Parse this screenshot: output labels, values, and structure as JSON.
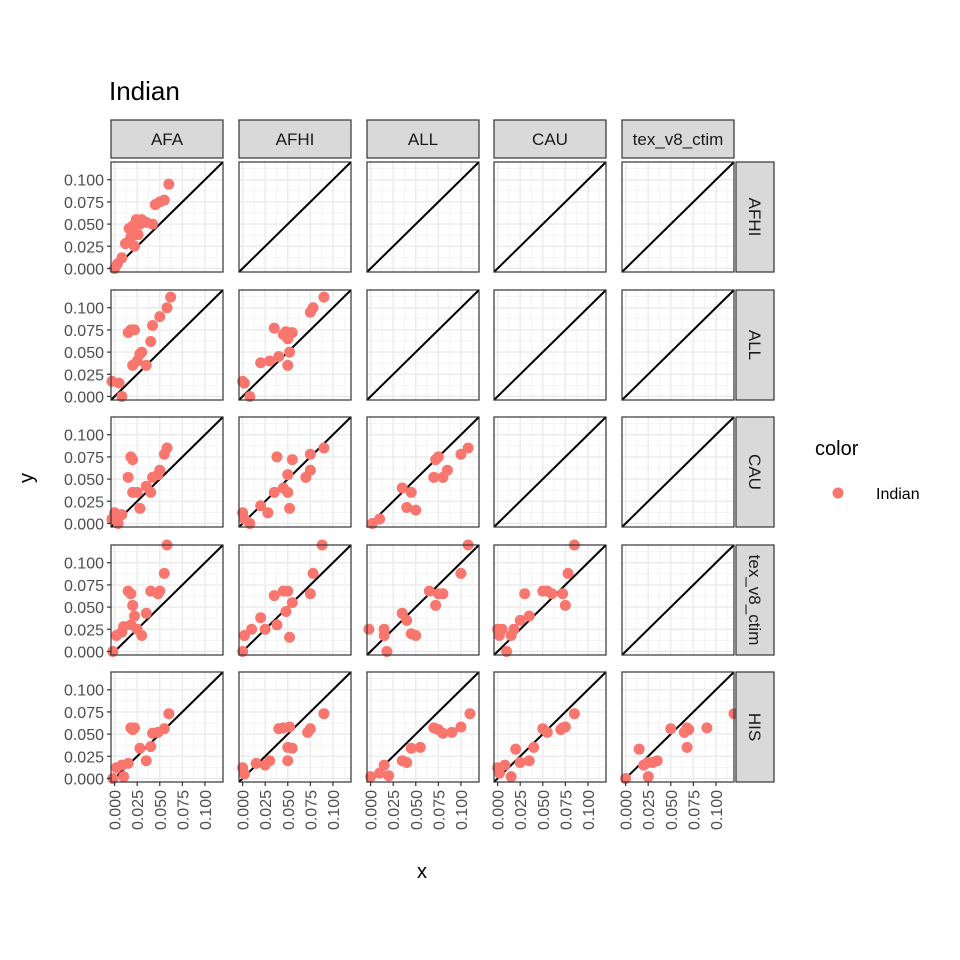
{
  "chart_data": {
    "type": "scatter",
    "title": "Indian",
    "xlabel": "x",
    "ylabel": "y",
    "xlim": [
      -0.004,
      0.12
    ],
    "ylim": [
      -0.004,
      0.12
    ],
    "ticks": [
      0.0,
      0.025,
      0.05,
      0.075,
      0.1
    ],
    "tick_labels": [
      "0.000",
      "0.025",
      "0.050",
      "0.075",
      "0.100"
    ],
    "grid": true,
    "reference_line": "y = x",
    "col_facets": [
      "AFA",
      "AFHI",
      "ALL",
      "CAU",
      "tex_v8_ctim"
    ],
    "row_facets": [
      "AFHI",
      "ALL",
      "CAU",
      "tex_v8_ctim",
      "HIS"
    ],
    "legend": {
      "title": "color",
      "position": "right",
      "entries": [
        {
          "label": "Indian",
          "color": "#F8766D"
        }
      ]
    },
    "panels": [
      {
        "row": 0,
        "col": 0,
        "points": [
          [
            0.0,
            0.0
          ],
          [
            0.003,
            0.005
          ],
          [
            0.008,
            0.012
          ],
          [
            0.012,
            0.028
          ],
          [
            0.015,
            0.03
          ],
          [
            0.016,
            0.045
          ],
          [
            0.018,
            0.035
          ],
          [
            0.02,
            0.048
          ],
          [
            0.022,
            0.025
          ],
          [
            0.024,
            0.055
          ],
          [
            0.026,
            0.038
          ],
          [
            0.028,
            0.05
          ],
          [
            0.03,
            0.055
          ],
          [
            0.035,
            0.052
          ],
          [
            0.042,
            0.05
          ],
          [
            0.045,
            0.072
          ],
          [
            0.05,
            0.075
          ],
          [
            0.055,
            0.077
          ],
          [
            0.06,
            0.095
          ]
        ]
      },
      {
        "row": 1,
        "col": 0,
        "points": [
          [
            -0.003,
            0.017
          ],
          [
            0.005,
            0.015
          ],
          [
            0.008,
            0.0
          ],
          [
            0.015,
            0.072
          ],
          [
            0.018,
            0.075
          ],
          [
            0.02,
            0.035
          ],
          [
            0.022,
            0.075
          ],
          [
            0.025,
            0.04
          ],
          [
            0.028,
            0.048
          ],
          [
            0.03,
            0.05
          ],
          [
            0.035,
            0.035
          ],
          [
            0.04,
            0.062
          ],
          [
            0.042,
            0.08
          ],
          [
            0.05,
            0.09
          ],
          [
            0.058,
            0.1
          ],
          [
            0.062,
            0.112
          ]
        ]
      },
      {
        "row": 1,
        "col": 1,
        "points": [
          [
            0.0,
            0.017
          ],
          [
            0.002,
            0.015
          ],
          [
            0.008,
            0.0
          ],
          [
            0.02,
            0.038
          ],
          [
            0.03,
            0.04
          ],
          [
            0.035,
            0.077
          ],
          [
            0.04,
            0.045
          ],
          [
            0.045,
            0.07
          ],
          [
            0.048,
            0.073
          ],
          [
            0.05,
            0.035
          ],
          [
            0.05,
            0.065
          ],
          [
            0.052,
            0.05
          ],
          [
            0.055,
            0.072
          ],
          [
            0.075,
            0.095
          ],
          [
            0.078,
            0.1
          ],
          [
            0.09,
            0.112
          ]
        ]
      },
      {
        "row": 2,
        "col": 0,
        "points": [
          [
            -0.003,
            0.005
          ],
          [
            0.0,
            0.012
          ],
          [
            0.004,
            0.0
          ],
          [
            0.008,
            0.01
          ],
          [
            0.015,
            0.052
          ],
          [
            0.018,
            0.075
          ],
          [
            0.02,
            0.072
          ],
          [
            0.02,
            0.035
          ],
          [
            0.025,
            0.035
          ],
          [
            0.028,
            0.017
          ],
          [
            0.035,
            0.042
          ],
          [
            0.04,
            0.035
          ],
          [
            0.042,
            0.052
          ],
          [
            0.048,
            0.055
          ],
          [
            0.05,
            0.06
          ],
          [
            0.055,
            0.078
          ],
          [
            0.058,
            0.085
          ]
        ]
      },
      {
        "row": 2,
        "col": 1,
        "points": [
          [
            0.0,
            0.012
          ],
          [
            0.002,
            0.005
          ],
          [
            0.008,
            0.0
          ],
          [
            0.02,
            0.02
          ],
          [
            0.028,
            0.012
          ],
          [
            0.035,
            0.035
          ],
          [
            0.038,
            0.075
          ],
          [
            0.045,
            0.04
          ],
          [
            0.05,
            0.035
          ],
          [
            0.05,
            0.055
          ],
          [
            0.052,
            0.017
          ],
          [
            0.055,
            0.072
          ],
          [
            0.07,
            0.052
          ],
          [
            0.075,
            0.06
          ],
          [
            0.075,
            0.078
          ],
          [
            0.09,
            0.085
          ]
        ]
      },
      {
        "row": 2,
        "col": 2,
        "points": [
          [
            0.002,
            0.0
          ],
          [
            0.01,
            0.005
          ],
          [
            0.035,
            0.04
          ],
          [
            0.04,
            0.018
          ],
          [
            0.045,
            0.035
          ],
          [
            0.05,
            0.015
          ],
          [
            0.07,
            0.052
          ],
          [
            0.072,
            0.072
          ],
          [
            0.075,
            0.075
          ],
          [
            0.08,
            0.052
          ],
          [
            0.085,
            0.06
          ],
          [
            0.1,
            0.078
          ],
          [
            0.108,
            0.085
          ]
        ]
      },
      {
        "row": 3,
        "col": 0,
        "points": [
          [
            -0.002,
            0.0
          ],
          [
            0.002,
            0.018
          ],
          [
            0.008,
            0.022
          ],
          [
            0.01,
            0.028
          ],
          [
            0.015,
            0.068
          ],
          [
            0.018,
            0.065
          ],
          [
            0.018,
            0.03
          ],
          [
            0.02,
            0.052
          ],
          [
            0.022,
            0.04
          ],
          [
            0.025,
            0.025
          ],
          [
            0.03,
            0.018
          ],
          [
            0.035,
            0.043
          ],
          [
            0.04,
            0.068
          ],
          [
            0.048,
            0.065
          ],
          [
            0.05,
            0.068
          ],
          [
            0.055,
            0.088
          ],
          [
            0.058,
            0.12
          ]
        ]
      },
      {
        "row": 3,
        "col": 1,
        "points": [
          [
            0.0,
            0.0
          ],
          [
            0.002,
            0.018
          ],
          [
            0.01,
            0.025
          ],
          [
            0.02,
            0.038
          ],
          [
            0.025,
            0.025
          ],
          [
            0.035,
            0.063
          ],
          [
            0.038,
            0.03
          ],
          [
            0.045,
            0.068
          ],
          [
            0.048,
            0.045
          ],
          [
            0.05,
            0.068
          ],
          [
            0.052,
            0.016
          ],
          [
            0.055,
            0.055
          ],
          [
            0.075,
            0.065
          ],
          [
            0.078,
            0.088
          ],
          [
            0.088,
            0.12
          ]
        ]
      },
      {
        "row": 3,
        "col": 2,
        "points": [
          [
            -0.002,
            0.025
          ],
          [
            0.015,
            0.025
          ],
          [
            0.015,
            0.018
          ],
          [
            0.018,
            0.0
          ],
          [
            0.035,
            0.043
          ],
          [
            0.04,
            0.035
          ],
          [
            0.045,
            0.02
          ],
          [
            0.05,
            0.018
          ],
          [
            0.065,
            0.068
          ],
          [
            0.072,
            0.052
          ],
          [
            0.075,
            0.065
          ],
          [
            0.08,
            0.065
          ],
          [
            0.1,
            0.088
          ],
          [
            0.108,
            0.12
          ]
        ]
      },
      {
        "row": 3,
        "col": 3,
        "points": [
          [
            0.0,
            0.025
          ],
          [
            0.002,
            0.018
          ],
          [
            0.005,
            0.025
          ],
          [
            0.01,
            0.0
          ],
          [
            0.015,
            0.018
          ],
          [
            0.018,
            0.025
          ],
          [
            0.025,
            0.035
          ],
          [
            0.03,
            0.065
          ],
          [
            0.035,
            0.04
          ],
          [
            0.05,
            0.068
          ],
          [
            0.055,
            0.068
          ],
          [
            0.06,
            0.065
          ],
          [
            0.072,
            0.065
          ],
          [
            0.075,
            0.052
          ],
          [
            0.078,
            0.088
          ],
          [
            0.085,
            0.12
          ]
        ]
      },
      {
        "row": 4,
        "col": 0,
        "points": [
          [
            -0.002,
            0.0
          ],
          [
            0.002,
            0.012
          ],
          [
            0.008,
            0.015
          ],
          [
            0.01,
            0.002
          ],
          [
            0.015,
            0.017
          ],
          [
            0.018,
            0.057
          ],
          [
            0.02,
            0.055
          ],
          [
            0.022,
            0.057
          ],
          [
            0.028,
            0.034
          ],
          [
            0.035,
            0.02
          ],
          [
            0.04,
            0.036
          ],
          [
            0.042,
            0.051
          ],
          [
            0.048,
            0.052
          ],
          [
            0.055,
            0.056
          ],
          [
            0.06,
            0.073
          ]
        ]
      },
      {
        "row": 4,
        "col": 1,
        "points": [
          [
            0.0,
            0.012
          ],
          [
            0.002,
            0.005
          ],
          [
            0.015,
            0.017
          ],
          [
            0.025,
            0.015
          ],
          [
            0.03,
            0.02
          ],
          [
            0.04,
            0.056
          ],
          [
            0.045,
            0.057
          ],
          [
            0.05,
            0.02
          ],
          [
            0.05,
            0.035
          ],
          [
            0.052,
            0.058
          ],
          [
            0.055,
            0.034
          ],
          [
            0.072,
            0.052
          ],
          [
            0.075,
            0.056
          ],
          [
            0.09,
            0.073
          ]
        ]
      },
      {
        "row": 4,
        "col": 2,
        "points": [
          [
            0.0,
            0.002
          ],
          [
            0.01,
            0.006
          ],
          [
            0.015,
            0.015
          ],
          [
            0.02,
            0.003
          ],
          [
            0.035,
            0.02
          ],
          [
            0.04,
            0.018
          ],
          [
            0.045,
            0.034
          ],
          [
            0.055,
            0.035
          ],
          [
            0.07,
            0.057
          ],
          [
            0.075,
            0.055
          ],
          [
            0.08,
            0.051
          ],
          [
            0.09,
            0.052
          ],
          [
            0.1,
            0.058
          ],
          [
            0.11,
            0.073
          ]
        ]
      },
      {
        "row": 4,
        "col": 3,
        "points": [
          [
            0.0,
            0.012
          ],
          [
            0.002,
            0.006
          ],
          [
            0.008,
            0.015
          ],
          [
            0.015,
            0.002
          ],
          [
            0.02,
            0.033
          ],
          [
            0.025,
            0.018
          ],
          [
            0.035,
            0.02
          ],
          [
            0.04,
            0.035
          ],
          [
            0.05,
            0.056
          ],
          [
            0.055,
            0.052
          ],
          [
            0.07,
            0.055
          ],
          [
            0.072,
            0.057
          ],
          [
            0.075,
            0.058
          ],
          [
            0.085,
            0.073
          ]
        ]
      },
      {
        "row": 4,
        "col": 4,
        "points": [
          [
            0.0,
            0.0
          ],
          [
            0.015,
            0.033
          ],
          [
            0.02,
            0.015
          ],
          [
            0.025,
            0.002
          ],
          [
            0.025,
            0.018
          ],
          [
            0.03,
            0.018
          ],
          [
            0.035,
            0.02
          ],
          [
            0.05,
            0.056
          ],
          [
            0.065,
            0.052
          ],
          [
            0.068,
            0.035
          ],
          [
            0.068,
            0.057
          ],
          [
            0.07,
            0.055
          ],
          [
            0.09,
            0.057
          ],
          [
            0.12,
            0.073
          ]
        ]
      }
    ]
  }
}
